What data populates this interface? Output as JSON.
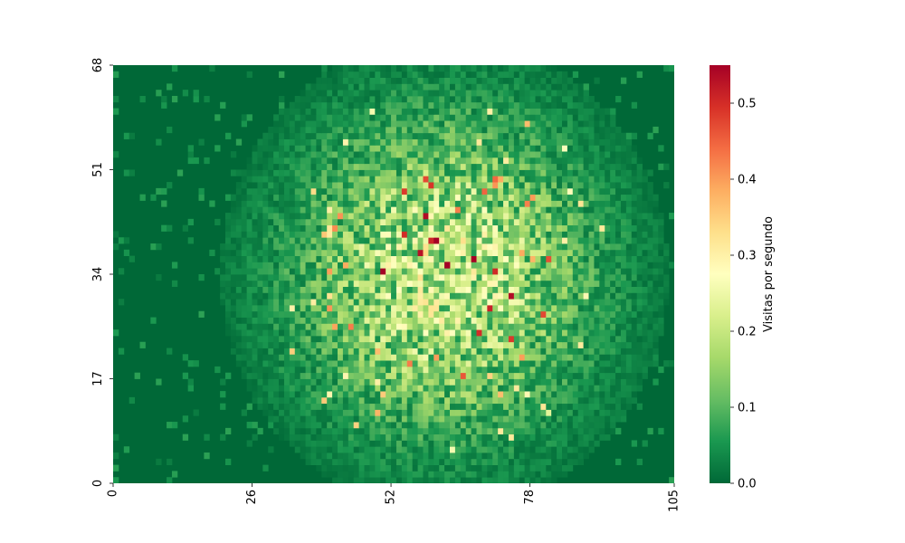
{
  "chart_data": {
    "type": "heatmap",
    "title": "",
    "xlabel": "",
    "ylabel": "",
    "x_ticks": [
      "0",
      "26",
      "52",
      "78",
      "105"
    ],
    "x_tick_values": [
      0,
      26,
      52,
      78,
      105
    ],
    "y_ticks": [
      "0",
      "17",
      "34",
      "51",
      "68"
    ],
    "y_tick_values": [
      0,
      17,
      34,
      51,
      68
    ],
    "xlim": [
      0,
      105
    ],
    "ylim": [
      0,
      68
    ],
    "grid_cols": 105,
    "grid_rows": 68,
    "colormap": "RdYlGn_r",
    "colormap_stops": [
      "#006837",
      "#1a9850",
      "#66bd63",
      "#a6d96a",
      "#d9ef8b",
      "#ffffbf",
      "#fee08b",
      "#fdae61",
      "#f46d43",
      "#d73027",
      "#a50026"
    ],
    "colorbar": {
      "label": "Visitas por segundo",
      "ticks": [
        "0.0",
        "0.1",
        "0.2",
        "0.3",
        "0.4",
        "0.5"
      ],
      "tick_values": [
        0.0,
        0.1,
        0.2,
        0.3,
        0.4,
        0.5
      ],
      "range": [
        0.0,
        0.55
      ]
    },
    "value_summary": {
      "max": 0.55,
      "max_location": [
        62,
        35
      ],
      "hotspot_center": [
        62,
        34
      ],
      "description_of_distribution": "visits concentrated in central region, near zero at left and right edges"
    }
  }
}
